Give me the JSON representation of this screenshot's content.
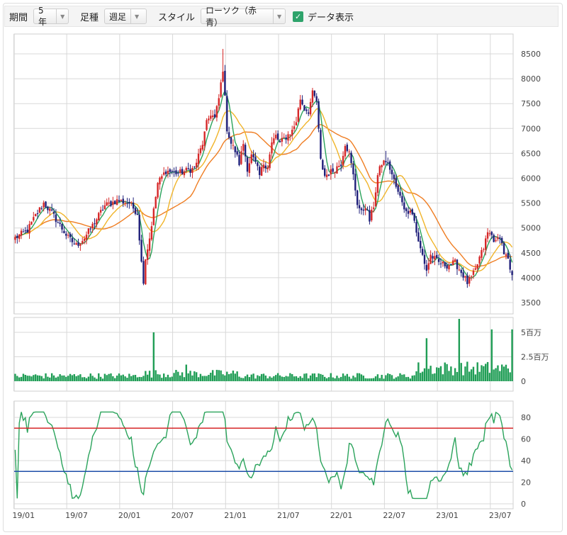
{
  "toolbar": {
    "period_label": "期間",
    "period_value": "5年",
    "footshape_label": "足種",
    "footshape_value": "週足",
    "style_label": "スタイル",
    "style_value": "ローソク（赤青）",
    "data_display_label": "データ表示",
    "data_display_checked": true
  },
  "colors": {
    "candle_up": "#d62728",
    "candle_down": "#1f1f7a",
    "ma_short": "#2aa35b",
    "ma_mid": "#f0b429",
    "ma_long": "#ef7d22",
    "volume": "#1f9d55",
    "rsi": "#2aa35b",
    "rsi_upper": "#d62728",
    "rsi_lower": "#1f4fa8",
    "grid": "#d8d8d8"
  },
  "chart_data": [
    {
      "type": "candlestick",
      "title": "",
      "ylim": [
        3500,
        8500
      ],
      "yticks": [
        "8500",
        "8000",
        "7500",
        "7000",
        "6500",
        "6000",
        "5500",
        "5000",
        "4500",
        "4000",
        "3500"
      ],
      "ytick_values": [
        8500,
        8000,
        7500,
        7000,
        6500,
        6000,
        5500,
        5000,
        4500,
        4000,
        3500
      ],
      "x_tick_labels": [
        "19/01",
        "19/07",
        "20/01",
        "20/07",
        "21/01",
        "21/07",
        "22/01",
        "22/07",
        "23/01",
        "23/07"
      ],
      "x_tick_index": [
        0,
        26,
        52,
        78,
        104,
        130,
        156,
        182,
        208,
        234
      ],
      "close_path": [
        [
          0,
          4800
        ],
        [
          6,
          4950
        ],
        [
          10,
          5250
        ],
        [
          14,
          5500
        ],
        [
          18,
          5300
        ],
        [
          22,
          5050
        ],
        [
          26,
          4800
        ],
        [
          30,
          4650
        ],
        [
          34,
          4800
        ],
        [
          38,
          5050
        ],
        [
          44,
          5450
        ],
        [
          50,
          5550
        ],
        [
          56,
          5500
        ],
        [
          60,
          5300
        ],
        [
          62,
          4300
        ],
        [
          63,
          3950
        ],
        [
          64,
          4400
        ],
        [
          66,
          4800
        ],
        [
          70,
          5900
        ],
        [
          74,
          6150
        ],
        [
          80,
          6100
        ],
        [
          88,
          6200
        ],
        [
          92,
          6700
        ],
        [
          94,
          7100
        ],
        [
          96,
          7300
        ],
        [
          98,
          7200
        ],
        [
          100,
          7600
        ],
        [
          102,
          8200
        ],
        [
          104,
          7000
        ],
        [
          106,
          6700
        ],
        [
          108,
          6550
        ],
        [
          110,
          6300
        ],
        [
          112,
          6700
        ],
        [
          114,
          6200
        ],
        [
          116,
          6450
        ],
        [
          118,
          6300
        ],
        [
          120,
          6050
        ],
        [
          122,
          6300
        ],
        [
          124,
          6250
        ],
        [
          126,
          6700
        ],
        [
          128,
          6850
        ],
        [
          130,
          6700
        ],
        [
          132,
          6800
        ],
        [
          136,
          6950
        ],
        [
          138,
          7150
        ],
        [
          140,
          7600
        ],
        [
          142,
          7400
        ],
        [
          144,
          7350
        ],
        [
          146,
          7700
        ],
        [
          148,
          7550
        ],
        [
          150,
          6350
        ],
        [
          152,
          6050
        ],
        [
          156,
          6150
        ],
        [
          160,
          6300
        ],
        [
          162,
          6700
        ],
        [
          164,
          6500
        ],
        [
          166,
          6050
        ],
        [
          168,
          5500
        ],
        [
          170,
          5300
        ],
        [
          172,
          5450
        ],
        [
          174,
          5150
        ],
        [
          176,
          5450
        ],
        [
          178,
          6050
        ],
        [
          180,
          6300
        ],
        [
          182,
          6350
        ],
        [
          184,
          6200
        ],
        [
          188,
          5700
        ],
        [
          190,
          5550
        ],
        [
          192,
          5300
        ],
        [
          194,
          5400
        ],
        [
          196,
          5150
        ],
        [
          198,
          4700
        ],
        [
          200,
          4450
        ],
        [
          202,
          4150
        ],
        [
          204,
          4450
        ],
        [
          208,
          4300
        ],
        [
          212,
          4250
        ],
        [
          216,
          4300
        ],
        [
          220,
          4050
        ],
        [
          222,
          3900
        ],
        [
          224,
          4000
        ],
        [
          226,
          4150
        ],
        [
          228,
          4400
        ],
        [
          230,
          4600
        ],
        [
          232,
          4900
        ],
        [
          234,
          4850
        ],
        [
          236,
          4700
        ],
        [
          238,
          4850
        ],
        [
          240,
          4500
        ],
        [
          242,
          4350
        ],
        [
          243,
          4100
        ],
        [
          244,
          4050
        ]
      ],
      "ma_short_period": 5,
      "ma_mid_period": 13,
      "ma_long_period": 26
    },
    {
      "type": "bar",
      "title": "",
      "ylim": [
        0,
        6000000
      ],
      "yticks": [
        "5百万",
        "2.5百万",
        "0"
      ],
      "ytick_values": [
        5000000,
        2500000,
        0
      ],
      "spikes": [
        [
          68,
          5000000
        ],
        [
          84,
          1700000
        ],
        [
          202,
          4400000
        ],
        [
          218,
          6700000
        ],
        [
          234,
          5300000
        ],
        [
          244,
          5300000
        ]
      ]
    },
    {
      "type": "line",
      "title": "",
      "ylim": [
        0,
        90
      ],
      "yticks": [
        "80",
        "60",
        "40",
        "20",
        "0"
      ],
      "ytick_values": [
        80,
        60,
        40,
        20,
        0
      ],
      "upper_line": 70,
      "lower_line": 30
    }
  ]
}
